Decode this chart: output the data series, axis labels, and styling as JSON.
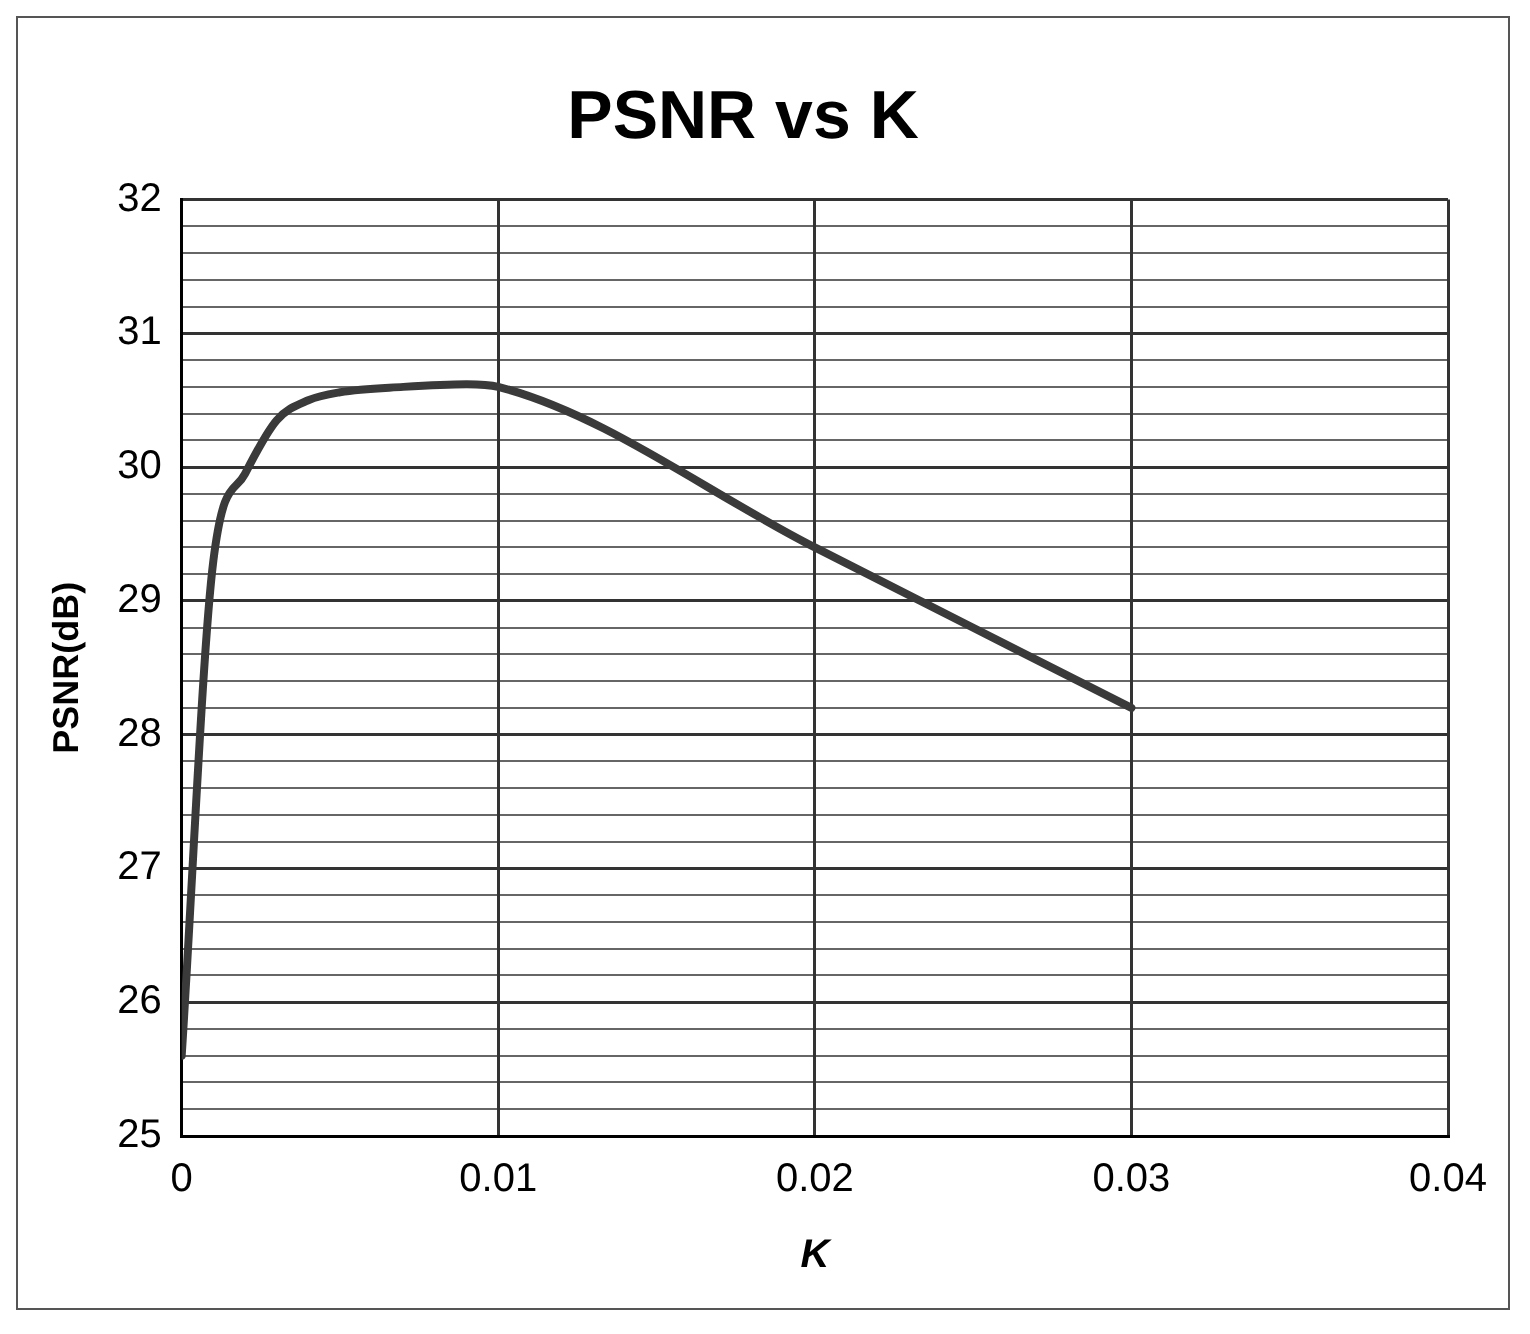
{
  "chart_data": {
    "type": "line",
    "title": "PSNR vs K",
    "xlabel": "K",
    "ylabel": "PSNR(dB)",
    "x": [
      0,
      0.001,
      0.002,
      0.003,
      0.004,
      0.005,
      0.007,
      0.009,
      0.01,
      0.02,
      0.03
    ],
    "series": [
      {
        "color": "#3a3a3a",
        "values": [
          25.6,
          29.3,
          29.95,
          30.35,
          30.5,
          30.56,
          30.6,
          30.62,
          30.6,
          29.4,
          28.2
        ]
      }
    ],
    "xlim": [
      0,
      0.04
    ],
    "xticks": [
      0,
      0.01,
      0.02,
      0.03,
      0.04
    ],
    "ylim": [
      25,
      32
    ],
    "yticks": [
      25,
      {
        "value": 25.2,
        "label": null
      },
      {
        "value": 25.4,
        "label": null
      },
      {
        "value": 25.6,
        "label": null
      },
      {
        "value": 25.8,
        "label": null
      },
      26,
      {
        "value": 26.2,
        "label": null
      },
      {
        "value": 26.4,
        "label": null
      },
      {
        "value": 26.6,
        "label": null
      },
      {
        "value": 26.8,
        "label": null
      },
      27,
      {
        "value": 27.2,
        "label": null
      },
      {
        "value": 27.4,
        "label": null
      },
      {
        "value": 27.6,
        "label": null
      },
      {
        "value": 27.8,
        "label": null
      },
      28,
      {
        "value": 28.2,
        "label": null
      },
      {
        "value": 28.4,
        "label": null
      },
      {
        "value": 28.6,
        "label": null
      },
      {
        "value": 28.8,
        "label": null
      },
      29,
      {
        "value": 29.2,
        "label": null
      },
      {
        "value": 29.4,
        "label": null
      },
      {
        "value": 29.6,
        "label": null
      },
      {
        "value": 29.8,
        "label": null
      },
      30,
      {
        "value": 30.2,
        "label": null
      },
      {
        "value": 30.4,
        "label": null
      },
      {
        "value": 30.6,
        "label": null
      },
      {
        "value": 30.8,
        "label": null
      },
      31,
      {
        "value": 31.2,
        "label": null
      },
      {
        "value": 31.4,
        "label": null
      },
      {
        "value": 31.6,
        "label": null
      },
      {
        "value": 31.8,
        "label": null
      },
      32
    ],
    "grid": true,
    "legend": false,
    "marker": "none",
    "line_style": "solid"
  }
}
